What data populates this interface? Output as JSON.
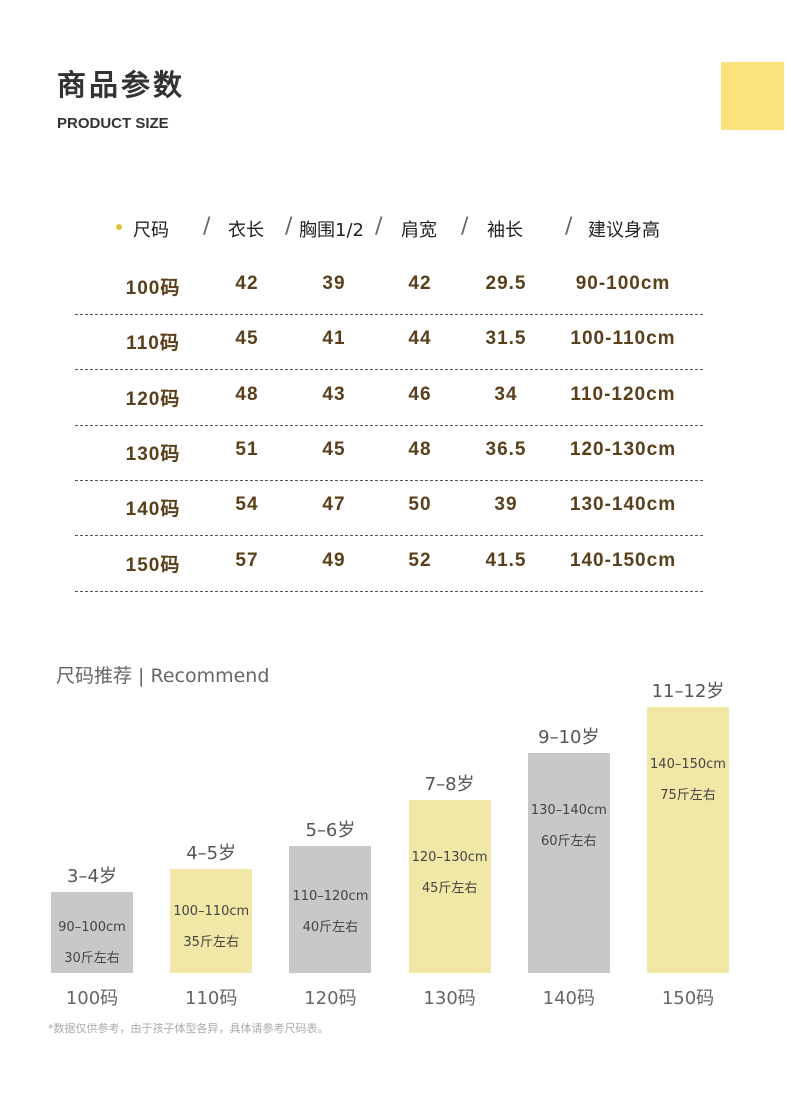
{
  "header": {
    "title_cn": "商品参数",
    "title_en": "PRODUCT SIZE",
    "accent_color": "#fbe27a"
  },
  "table": {
    "columns": [
      "尺码",
      "衣长",
      "胸围1/2",
      "肩宽",
      "袖长",
      "建议身高"
    ],
    "rows": [
      [
        "100码",
        "42",
        "39",
        "42",
        "29.5",
        "90-100cm"
      ],
      [
        "110码",
        "45",
        "41",
        "44",
        "31.5",
        "100-110cm"
      ],
      [
        "120码",
        "48",
        "43",
        "46",
        "34",
        "110-120cm"
      ],
      [
        "130码",
        "51",
        "45",
        "48",
        "36.5",
        "120-130cm"
      ],
      [
        "140码",
        "54",
        "47",
        "50",
        "39",
        "130-140cm"
      ],
      [
        "150码",
        "57",
        "49",
        "52",
        "41.5",
        "140-150cm"
      ]
    ]
  },
  "recommend": {
    "title": "尺码推荐 | Recommend",
    "footnote": "*数据仅供参考，由于孩子体型各异，具体请参考尺码表。"
  },
  "chart_data": {
    "type": "bar",
    "title": "尺码推荐 | Recommend",
    "categories": [
      "100码",
      "110码",
      "120码",
      "130码",
      "140码",
      "150码"
    ],
    "values": [
      3.5,
      4.5,
      5.5,
      7.5,
      9.5,
      11.5
    ],
    "ages": [
      "3–4岁",
      "4–5岁",
      "5–6岁",
      "7–8岁",
      "9–10岁",
      "11–12岁"
    ],
    "heights": [
      "90–100cm",
      "100–110cm",
      "110–120cm",
      "120–130cm",
      "130–140cm",
      "140–150cm"
    ],
    "weights": [
      "30斤左右",
      "35斤左右",
      "40斤左右",
      "45斤左右",
      "60斤左右",
      "75斤左右"
    ],
    "colors": [
      "#c9c7c9",
      "#f1e7a6",
      "#c9c7c9",
      "#f1e7a6",
      "#c9c7c9",
      "#f1e7a6"
    ],
    "ylim": [
      0,
      13.5
    ],
    "grid": false
  }
}
